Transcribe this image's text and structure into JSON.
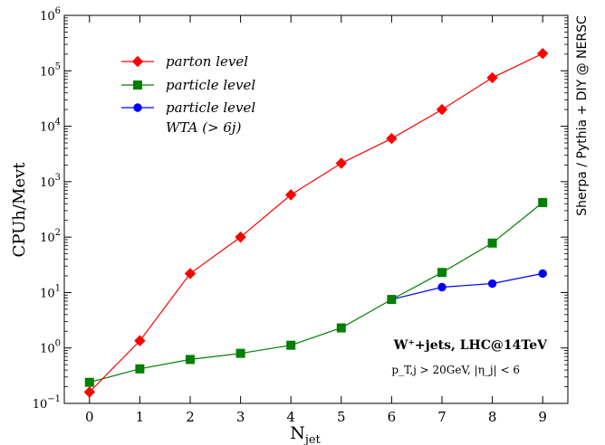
{
  "chart_data": {
    "type": "line",
    "y_scale": "log",
    "xlabel": "N",
    "xlabel_sub": "jet",
    "ylabel": "CPUh/Mevt",
    "right_label": "Sherpa / Pythia + DIY @ NERSC",
    "x_ticks": [
      "0",
      "1",
      "2",
      "3",
      "4",
      "5",
      "6",
      "7",
      "8",
      "9"
    ],
    "xlim": [
      -0.5,
      9.5
    ],
    "ylim": [
      0.1,
      1000000
    ],
    "y_ticks": [
      {
        "base": "10",
        "exp": "−1",
        "value": 0.1
      },
      {
        "base": "10",
        "exp": "0",
        "value": 1
      },
      {
        "base": "10",
        "exp": "1",
        "value": 10
      },
      {
        "base": "10",
        "exp": "2",
        "value": 100
      },
      {
        "base": "10",
        "exp": "3",
        "value": 1000
      },
      {
        "base": "10",
        "exp": "4",
        "value": 10000
      },
      {
        "base": "10",
        "exp": "5",
        "value": 100000
      },
      {
        "base": "10",
        "exp": "6",
        "value": 1000000
      }
    ],
    "grid": false,
    "legend_position": "top-left",
    "series": [
      {
        "name": "parton level",
        "color": "#ff0000",
        "marker": "diamond",
        "x": [
          0,
          1,
          2,
          3,
          4,
          5,
          6,
          7,
          8,
          9
        ],
        "values": [
          0.16,
          1.35,
          22,
          100,
          580,
          2150,
          6000,
          20000,
          75000,
          205000
        ]
      },
      {
        "name": "particle level",
        "color": "#007f00",
        "marker": "square",
        "x": [
          0,
          1,
          2,
          3,
          4,
          5,
          6,
          7,
          8,
          9
        ],
        "values": [
          0.24,
          0.42,
          0.62,
          0.8,
          1.12,
          2.3,
          7.5,
          23,
          78,
          420
        ]
      },
      {
        "name": "particle level",
        "name_line2": "WTA (> 6j)",
        "color": "#0000ff",
        "marker": "circle",
        "x": [
          6,
          7,
          8,
          9
        ],
        "values": [
          7.5,
          12.5,
          14.5,
          22
        ]
      }
    ],
    "annotations": {
      "process": "W⁺+jets, LHC@14TeV",
      "cuts": "p_T,j > 20GeV, |η_j| < 6"
    }
  }
}
